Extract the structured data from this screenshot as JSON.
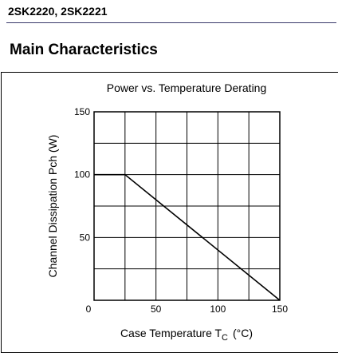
{
  "document": {
    "header": "2SK2220, 2SK2221",
    "section_title": "Main Characteristics"
  },
  "chart_data": {
    "type": "line",
    "title": "Power vs. Temperature Derating",
    "xlabel_main": "Case Temperature  T",
    "xlabel_sub": "C",
    "xlabel_unit": "(°C)",
    "ylabel": "Channel Dissipation  Pch  (W)",
    "xlim": [
      0,
      150
    ],
    "ylim": [
      0,
      150
    ],
    "x_ticks": [
      0,
      50,
      100,
      150
    ],
    "y_ticks": [
      0,
      50,
      100,
      150
    ],
    "x_grid_step": 25,
    "y_grid_step": 25,
    "grid": true,
    "series": [
      {
        "x": [
          0,
          25,
          150
        ],
        "y": [
          100,
          100,
          0
        ]
      }
    ]
  }
}
